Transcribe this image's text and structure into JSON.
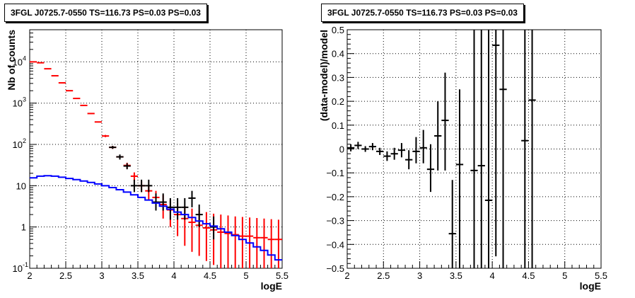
{
  "chart_data": [
    {
      "type": "line",
      "title": "3FGL J0725.7-0550 TS=116.73 PS=0.03 PS=0.03",
      "xlabel": "logE",
      "ylabel": "Nb of counts",
      "xlim": [
        2,
        5.5
      ],
      "ylim": [
        0.1,
        60000
      ],
      "yscale": "log",
      "grid": true,
      "xticks": [
        "2",
        "2.5",
        "3",
        "3.5",
        "4",
        "4.5",
        "5",
        "5.5"
      ],
      "yticks": [
        {
          "value": 0.1,
          "label": "10",
          "exp": "-1"
        },
        {
          "value": 1,
          "label": "1",
          "exp": ""
        },
        {
          "value": 10,
          "label": "10",
          "exp": ""
        },
        {
          "value": 100,
          "label": "10",
          "exp": "2"
        },
        {
          "value": 1000,
          "label": "10",
          "exp": "3"
        },
        {
          "value": 10000,
          "label": "10",
          "exp": "4"
        }
      ],
      "series": [
        {
          "color": "#ff0000",
          "style": "errorbar",
          "x": [
            2.05,
            2.15,
            2.25,
            2.35,
            2.45,
            2.55,
            2.65,
            2.75,
            2.85,
            2.95,
            3.05,
            3.15,
            3.25,
            3.35,
            3.45,
            3.55,
            3.65,
            3.75,
            3.85,
            3.95,
            4.05,
            4.15,
            4.25,
            4.35,
            4.45,
            4.55,
            4.65,
            4.75,
            4.85,
            4.95,
            5.05,
            5.15,
            5.25,
            5.35,
            5.45
          ],
          "y": [
            10000,
            9500,
            6800,
            4600,
            3100,
            2000,
            1300,
            880,
            560,
            350,
            160,
            85,
            50,
            31,
            17,
            10,
            7.5,
            5.2,
            3.5,
            2.6,
            2.0,
            1.6,
            1.3,
            1.1,
            0.95,
            0.85,
            0.75,
            0.7,
            0.65,
            0.6,
            0.6,
            0.55,
            0.55,
            0.5,
            0.5
          ],
          "ylow": [
            9900,
            9400,
            6700,
            4550,
            3050,
            1960,
            1270,
            860,
            545,
            340,
            150,
            78,
            44,
            26,
            13,
            7,
            4.5,
            2.8,
            1.6,
            1.0,
            0.6,
            0.35,
            0.25,
            0.2,
            0.15,
            0.12,
            0.1,
            0.1,
            0.1,
            0.1,
            0.1,
            0.1,
            0.1,
            0.1,
            0.1
          ],
          "yhigh": [
            10100,
            9600,
            6900,
            4650,
            3150,
            2040,
            1330,
            900,
            575,
            360,
            170,
            92,
            56,
            36,
            21,
            13,
            10.5,
            7.5,
            6,
            4.5,
            3.8,
            3.2,
            2.8,
            2.5,
            2.3,
            2.1,
            2.0,
            1.9,
            1.8,
            1.75,
            1.7,
            1.65,
            1.6,
            1.55,
            1.5
          ]
        },
        {
          "color": "#000000",
          "style": "errorbar",
          "x": [
            3.15,
            3.25,
            3.35,
            3.45,
            3.55,
            3.65,
            3.75,
            3.85,
            3.95,
            4.05,
            4.15,
            4.25,
            4.35,
            4.55
          ],
          "y": [
            85,
            50,
            30,
            10,
            10,
            10,
            4,
            4,
            3,
            3,
            3,
            5,
            2,
            1
          ],
          "ylow": [
            78,
            43,
            25,
            7,
            7,
            7,
            2.5,
            2.5,
            1.5,
            1.5,
            1.5,
            3,
            1,
            0.5
          ],
          "yhigh": [
            92,
            57,
            35,
            14,
            14,
            14,
            6.5,
            6.5,
            5,
            5,
            5,
            7.5,
            3.5,
            1.8
          ]
        },
        {
          "color": "#0000ff",
          "style": "step",
          "x": [
            2.0,
            2.1,
            2.2,
            2.3,
            2.4,
            2.5,
            2.6,
            2.7,
            2.8,
            2.9,
            3.0,
            3.1,
            3.2,
            3.3,
            3.4,
            3.5,
            3.6,
            3.7,
            3.8,
            3.9,
            4.0,
            4.1,
            4.2,
            4.3,
            4.4,
            4.5,
            4.6,
            4.7,
            4.8,
            4.9,
            5.0,
            5.1,
            5.2,
            5.3,
            5.4
          ],
          "y": [
            15.5,
            17,
            17.5,
            17,
            16,
            15,
            14,
            13,
            12,
            11,
            10,
            9,
            8,
            7,
            6,
            5.2,
            4.5,
            3.8,
            3.2,
            2.7,
            2.3,
            2.0,
            1.7,
            1.4,
            1.2,
            1.05,
            0.9,
            0.75,
            0.62,
            0.5,
            0.41,
            0.33,
            0.27,
            0.21,
            0.16
          ]
        }
      ]
    },
    {
      "type": "scatter",
      "title": "3FGL J0725.7-0550 TS=116.73 PS=0.03 PS=0.03",
      "xlabel": "logE",
      "ylabel": "(data-model)/model",
      "xlim": [
        2,
        5.5
      ],
      "ylim": [
        -0.5,
        0.5
      ],
      "grid": true,
      "xticks": [
        "2",
        "2.5",
        "3",
        "3.5",
        "4",
        "4.5",
        "5",
        "5.5"
      ],
      "yticks": [
        "−0.5",
        "−0.4",
        "−0.3",
        "−0.2",
        "−0.1",
        "0",
        "0.1",
        "0.2",
        "0.3",
        "0.4",
        "0.5"
      ],
      "series": [
        {
          "color": "#000000",
          "style": "errorbar",
          "x": [
            2.05,
            2.15,
            2.25,
            2.35,
            2.45,
            2.55,
            2.65,
            2.75,
            2.85,
            2.95,
            3.05,
            3.15,
            3.25,
            3.35,
            3.45,
            3.55,
            3.75,
            3.85,
            3.95,
            4.05,
            4.15,
            4.45,
            4.55
          ],
          "y": [
            0.005,
            0.015,
            0.0,
            0.01,
            -0.01,
            -0.03,
            -0.02,
            -0.005,
            -0.045,
            -0.01,
            0.005,
            -0.085,
            0.055,
            0.12,
            -0.355,
            -0.065,
            -0.09,
            -0.07,
            -0.215,
            0.435,
            0.25,
            0.035,
            0.205
          ],
          "ylow": [
            -0.01,
            0.0,
            -0.012,
            -0.005,
            -0.025,
            -0.05,
            -0.045,
            -0.035,
            -0.085,
            -0.06,
            -0.06,
            -0.18,
            -0.09,
            -0.09,
            -0.9,
            -0.5,
            -0.9,
            -0.9,
            -0.9,
            -0.45,
            -0.9,
            -0.9,
            -0.9
          ],
          "yhigh": [
            0.02,
            0.03,
            0.012,
            0.025,
            0.005,
            -0.01,
            0.005,
            0.025,
            -0.005,
            0.05,
            0.08,
            0.02,
            0.2,
            0.32,
            -0.13,
            0.25,
            0.9,
            0.9,
            0.9,
            0.9,
            0.9,
            0.9,
            0.9
          ]
        }
      ]
    }
  ]
}
